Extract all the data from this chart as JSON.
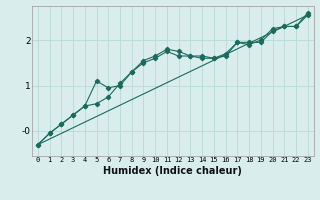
{
  "title": "",
  "xlabel": "Humidex (Indice chaleur)",
  "ylabel": "",
  "bg_color": "#d9eeec",
  "line_color": "#1a6b5e",
  "grid_color": "#b8d8d4",
  "xlim": [
    -0.5,
    23.5
  ],
  "ylim": [
    -0.55,
    2.75
  ],
  "x_ticks": [
    0,
    1,
    2,
    3,
    4,
    5,
    6,
    7,
    8,
    9,
    10,
    11,
    12,
    13,
    14,
    15,
    16,
    17,
    18,
    19,
    20,
    21,
    22,
    23
  ],
  "y_ticks": [
    0,
    1,
    2
  ],
  "y_tick_labels": [
    "-0",
    "1",
    "2"
  ],
  "series1_x": [
    0,
    1,
    2,
    3,
    4,
    5,
    6,
    7,
    8,
    9,
    10,
    11,
    12,
    13,
    14,
    15,
    16,
    17,
    18,
    19,
    20,
    21,
    22,
    23
  ],
  "series1_y": [
    -0.3,
    -0.05,
    0.15,
    0.35,
    0.55,
    1.1,
    0.95,
    1.0,
    1.3,
    1.55,
    1.65,
    1.8,
    1.75,
    1.65,
    1.65,
    1.6,
    1.65,
    1.95,
    1.95,
    1.95,
    2.2,
    2.3,
    2.3,
    2.55
  ],
  "series2_x": [
    0,
    1,
    2,
    3,
    4,
    5,
    6,
    7,
    8,
    9,
    10,
    11,
    12,
    13,
    14,
    15,
    16,
    17,
    18,
    19,
    20,
    21,
    22,
    23
  ],
  "series2_y": [
    -0.3,
    -0.05,
    0.15,
    0.35,
    0.55,
    0.6,
    0.75,
    1.05,
    1.3,
    1.5,
    1.6,
    1.75,
    1.65,
    1.65,
    1.6,
    1.6,
    1.7,
    1.95,
    1.9,
    2.0,
    2.25,
    2.3,
    2.3,
    2.6
  ],
  "series3_x": [
    0,
    23
  ],
  "series3_y": [
    -0.3,
    2.55
  ]
}
